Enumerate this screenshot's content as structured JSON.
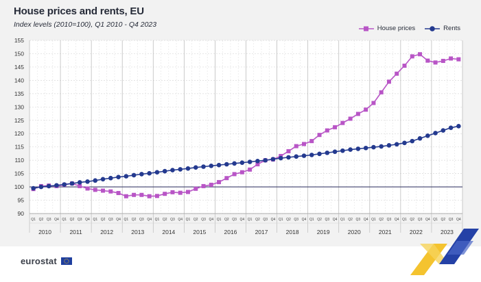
{
  "title": "House prices and rents, EU",
  "subtitle": "Index levels (2010=100), Q1 2010 - Q4 2023",
  "logo_text": "eurostat",
  "colors": {
    "house": "#b855c6",
    "rents": "#243a8f",
    "ref_line": "#3c3f6b"
  },
  "chart_data": {
    "type": "line",
    "title": "House prices and rents, EU",
    "subtitle": "Index levels (2010=100), Q1 2010 - Q4 2023",
    "xlabel": "",
    "ylabel": "",
    "ylim": [
      90,
      155
    ],
    "yticks": [
      90,
      95,
      100,
      105,
      110,
      115,
      120,
      125,
      130,
      135,
      140,
      145,
      150,
      155
    ],
    "reference_line": 100,
    "years": [
      "2010",
      "2011",
      "2012",
      "2013",
      "2014",
      "2015",
      "2016",
      "2017",
      "2018",
      "2019",
      "2020",
      "2021",
      "2022",
      "2023"
    ],
    "quarters": [
      "Q1",
      "Q2",
      "Q3",
      "Q4"
    ],
    "legend": [
      "House prices",
      "Rents"
    ],
    "legend_position": "top-right",
    "series": [
      {
        "name": "House prices",
        "marker": "square",
        "values": [
          99.2,
          100.3,
          100.5,
          100.3,
          100.8,
          101.3,
          100.3,
          99.4,
          98.9,
          98.6,
          98.3,
          97.7,
          96.5,
          97.0,
          97.0,
          96.5,
          96.6,
          97.4,
          98.0,
          97.8,
          98.1,
          99.3,
          100.3,
          100.8,
          101.8,
          103.3,
          104.8,
          105.5,
          106.5,
          108.5,
          110.0,
          110.3,
          111.6,
          113.4,
          115.3,
          116.1,
          117.2,
          119.5,
          121.2,
          122.4,
          124.0,
          125.6,
          127.4,
          129.0,
          131.5,
          135.5,
          139.5,
          142.5,
          145.5,
          149.0,
          149.8,
          147.4,
          146.7,
          147.3,
          148.2,
          147.9
        ]
      },
      {
        "name": "Rents",
        "marker": "circle",
        "values": [
          99.5,
          100.0,
          100.3,
          100.6,
          100.9,
          101.3,
          101.7,
          102.0,
          102.4,
          102.9,
          103.3,
          103.7,
          104.0,
          104.4,
          104.8,
          105.1,
          105.5,
          105.9,
          106.3,
          106.6,
          106.9,
          107.3,
          107.6,
          107.9,
          108.2,
          108.5,
          108.8,
          109.1,
          109.4,
          109.7,
          110.0,
          110.4,
          110.8,
          111.1,
          111.4,
          111.7,
          112.0,
          112.4,
          112.8,
          113.2,
          113.6,
          114.0,
          114.3,
          114.6,
          114.9,
          115.2,
          115.6,
          116.0,
          116.5,
          117.2,
          118.2,
          119.2,
          120.2,
          121.2,
          122.2,
          122.8
        ]
      }
    ]
  }
}
